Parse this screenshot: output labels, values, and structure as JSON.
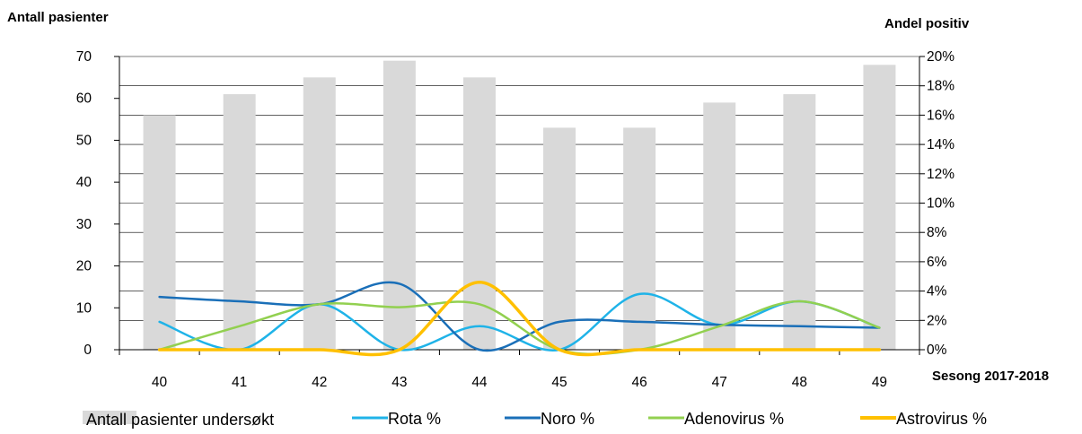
{
  "chart_data": {
    "type": "bar",
    "left_axis_title": "Antall pasienter",
    "right_axis_title": "Andel positiv",
    "xlabel": "Sesong 2017-2018",
    "categories": [
      "40",
      "41",
      "42",
      "43",
      "44",
      "45",
      "46",
      "47",
      "48",
      "49"
    ],
    "y_left": {
      "min": 0,
      "max": 70,
      "step": 10,
      "ticks": [
        "0",
        "10",
        "20",
        "30",
        "40",
        "50",
        "60",
        "70"
      ]
    },
    "y_right": {
      "min": 0,
      "max": 20,
      "step": 2,
      "ticks": [
        "0%",
        "2%",
        "4%",
        "6%",
        "8%",
        "10%",
        "12%",
        "14%",
        "16%",
        "18%",
        "20%"
      ]
    },
    "bars": {
      "name": "Antall pasienter undersøkt",
      "color": "#d9d9d9",
      "values": [
        56,
        61,
        65,
        69,
        65,
        53,
        53,
        59,
        61,
        68
      ]
    },
    "series": [
      {
        "name": "Rota %",
        "type": "line",
        "axis": "right",
        "color": "#1fb3e8",
        "values": [
          1.9,
          0,
          3.1,
          0,
          1.6,
          0,
          3.8,
          1.7,
          3.3,
          1.5
        ]
      },
      {
        "name": "Noro %",
        "type": "line",
        "axis": "right",
        "color": "#1a6fb8",
        "values": [
          3.6,
          3.3,
          3.1,
          4.5,
          0,
          1.9,
          1.9,
          1.7,
          1.6,
          1.5
        ]
      },
      {
        "name": "Adenovirus %",
        "type": "line",
        "axis": "right",
        "color": "#92d050",
        "values": [
          0,
          1.6,
          3.1,
          2.9,
          3.1,
          0,
          0,
          1.6,
          3.3,
          1.5
        ]
      },
      {
        "name": "Astrovirus %",
        "type": "line",
        "axis": "right",
        "color": "#ffc000",
        "values": [
          0,
          0,
          0,
          0,
          4.6,
          0,
          0,
          0,
          0,
          0
        ]
      }
    ],
    "grid": true,
    "legend_position": "bottom"
  }
}
